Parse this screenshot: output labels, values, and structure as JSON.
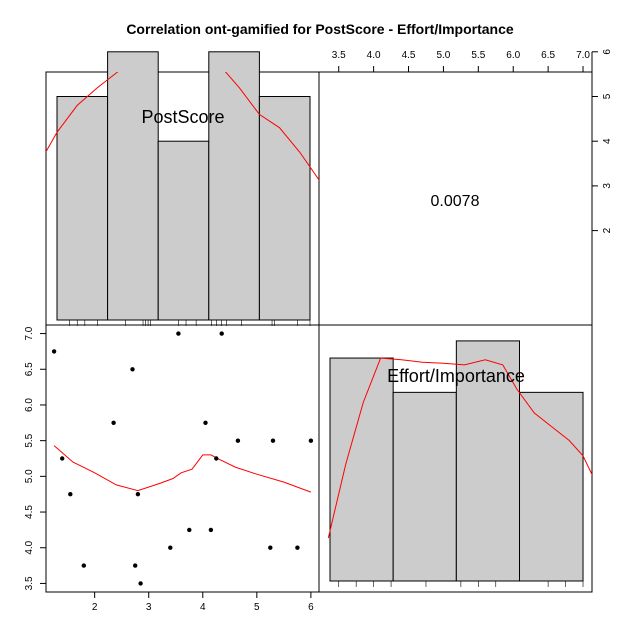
{
  "chart_data": {
    "type": "scatter",
    "title": "Correlation ont-gamified for PostScore - Effort/Importance",
    "variables": [
      "PostScore",
      "Effort/Importance"
    ],
    "correlation": "0.0078",
    "scatter": {
      "x": [
        1.25,
        1.4,
        1.55,
        1.8,
        2.35,
        2.7,
        2.75,
        2.8,
        2.85,
        3.4,
        3.55,
        3.75,
        4.05,
        4.15,
        4.25,
        4.35,
        4.65,
        5.25,
        5.3,
        5.75,
        6.0
      ],
      "y": [
        6.75,
        5.25,
        4.75,
        3.75,
        5.75,
        6.5,
        3.75,
        4.75,
        3.5,
        4.0,
        7.0,
        4.25,
        5.75,
        4.25,
        5.25,
        7.0,
        5.5,
        4.0,
        5.5,
        4.0,
        5.5
      ],
      "smooth_x": [
        1.25,
        1.6,
        2.0,
        2.4,
        2.8,
        3.2,
        3.45,
        3.6,
        3.8,
        4.0,
        4.15,
        4.3,
        4.6,
        5.0,
        5.5,
        6.0
      ],
      "smooth_y": [
        5.43,
        5.2,
        5.05,
        4.88,
        4.8,
        4.9,
        4.97,
        5.05,
        5.1,
        5.3,
        5.3,
        5.24,
        5.13,
        5.03,
        4.92,
        4.78
      ],
      "xlim": [
        1.1,
        6.15
      ],
      "ylim": [
        3.38,
        7.12
      ],
      "x_ticks": [
        "2",
        "3",
        "4",
        "5",
        "6"
      ],
      "y_ticks": [
        "3.5",
        "4.0",
        "4.5",
        "5.0",
        "5.5",
        "6.0",
        "6.5",
        "7.0"
      ]
    },
    "postscore_hist": {
      "breaks": [
        1.0,
        2.0,
        3.0,
        4.0,
        5.0,
        6.0
      ],
      "counts": [
        5,
        6,
        4,
        6,
        5
      ],
      "density_x": [
        0.35,
        0.7,
        1.0,
        1.4,
        1.8,
        2.2,
        2.6,
        3.0,
        3.4,
        3.8,
        4.0,
        4.2,
        4.6,
        5.0,
        5.4,
        5.8,
        6.2,
        6.55
      ],
      "density_y": [
        2.55,
        3.6,
        4.2,
        4.8,
        5.2,
        5.55,
        5.75,
        5.85,
        5.92,
        5.93,
        5.88,
        5.72,
        5.2,
        4.6,
        4.3,
        3.75,
        3.1,
        2.6
      ],
      "rug": [
        1.25,
        1.4,
        1.55,
        1.8,
        2.35,
        2.7,
        2.75,
        2.8,
        2.85,
        3.4,
        3.55,
        3.75,
        4.05,
        4.15,
        4.25,
        4.35,
        4.65,
        5.25,
        5.3,
        5.75,
        6.0
      ]
    },
    "effort_hist": {
      "breaks": [
        3.375,
        4.28,
        5.185,
        6.09,
        7.0
      ],
      "counts": [
        6.5,
        5.5,
        7.0,
        5.5
      ],
      "density_x": [
        3.35,
        3.6,
        3.85,
        4.1,
        4.4,
        4.7,
        5.0,
        5.3,
        5.6,
        5.85,
        6.05,
        6.3,
        6.55,
        6.8,
        7.0,
        7.2
      ],
      "density_y": [
        1.25,
        3.4,
        5.2,
        6.5,
        6.45,
        6.38,
        6.35,
        6.3,
        6.45,
        6.3,
        5.6,
        4.9,
        4.5,
        4.1,
        3.65,
        2.8
      ],
      "rug": [
        3.5,
        3.75,
        4.0,
        4.25,
        4.75,
        5.25,
        5.5,
        5.75,
        6.5,
        6.75,
        7.0
      ]
    },
    "top_axis_ticks": [
      "3.5",
      "4.0",
      "4.5",
      "5.0",
      "5.5",
      "6.0",
      "6.5",
      "7.0"
    ],
    "right_axis_ticks": [
      "2",
      "3",
      "4",
      "5",
      "6"
    ]
  }
}
